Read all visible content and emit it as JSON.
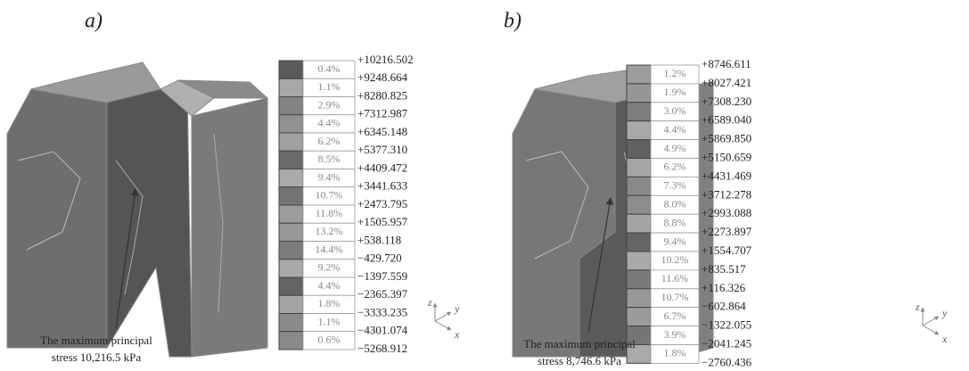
{
  "panels": [
    {
      "label": "a)",
      "legend": {
        "percentages": [
          "0.4%",
          "1.1%",
          "2.9%",
          "4.4%",
          "6.2%",
          "8.5%",
          "9.4%",
          "10.7%",
          "11.8%",
          "13.2%",
          "14.4%",
          "9.2%",
          "4.4%",
          "1.8%",
          "1.1%",
          "0.6%"
        ],
        "values": [
          "+10216.502",
          "+9248.664",
          "+8280.825",
          "+7312.987",
          "+6345.148",
          "+5377.310",
          "+4409.472",
          "+3441.633",
          "+2473.795",
          "+1505.957",
          "+538.118",
          "−429.720",
          "−1397.559",
          "−2365.397",
          "−3333.235",
          "−4301.074",
          "−5268.912"
        ]
      },
      "annotation": [
        "The maximum principal",
        "stress 10,216.5 kPa"
      ],
      "axes": {
        "z": "z",
        "y": "y",
        "x": "x"
      }
    },
    {
      "label": "b)",
      "legend": {
        "percentages": [
          "1.2%",
          "1.9%",
          "3.0%",
          "4.4%",
          "4.9%",
          "6.2%",
          "7.3%",
          "8.0%",
          "8.8%",
          "9.4%",
          "10.2%",
          "11.6%",
          "10.7%",
          "6.7%",
          "3.9%",
          "1.8%"
        ],
        "values": [
          "+8746.611",
          "+8027.421",
          "+7308.230",
          "+6589.040",
          "+5869.850",
          "+5150.659",
          "+4431.469",
          "+3712.278",
          "+2993.088",
          "+2273.897",
          "+1554.707",
          "+835.517",
          "+116.326",
          "−602.864",
          "−1322.055",
          "−2041.245",
          "−2760.436"
        ]
      },
      "annotation": [
        "The maximum principal",
        "stress 8,746.6 kPa"
      ],
      "axes": {
        "z": "z",
        "y": "y",
        "x": "x"
      }
    }
  ]
}
